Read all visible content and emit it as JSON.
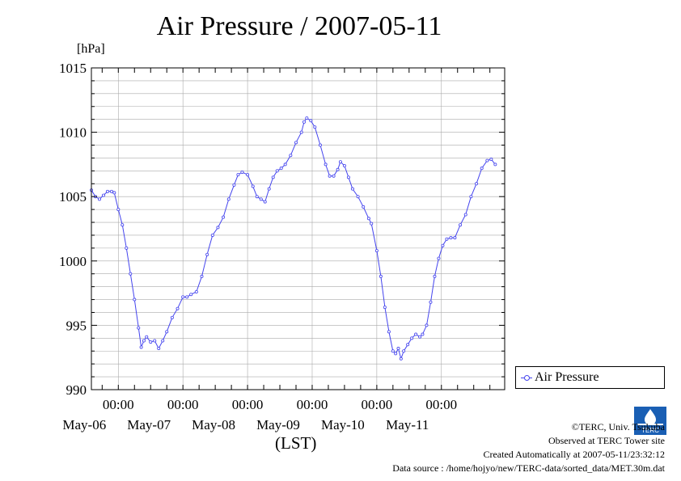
{
  "title": "Air Pressure / 2007-05-11",
  "unit": "[hPa]",
  "x_unit": "(LST)",
  "legend": {
    "label": "Air Pressure"
  },
  "credits": {
    "line1": "©TERC, Univ. Tsukuba",
    "line2": "Observed at TERC Tower site",
    "line3": "Created Automatically at 2007-05-11/23:32:12",
    "line4": "Data source : /home/hojyo/new/TERC-data/sorted_data/MET.30m.dat"
  },
  "logo_text": "TERC",
  "colors": {
    "series": "#4444ee",
    "grid": "#aaaaaa"
  },
  "chart_data": {
    "type": "line",
    "title": "Air Pressure / 2007-05-11",
    "ylabel": "[hPa]",
    "xlabel": "(LST)",
    "ylim": [
      990,
      1015
    ],
    "y_ticks": [
      990,
      995,
      1000,
      1005,
      1010,
      1015
    ],
    "xlim": [
      "2007-05-05 14:00",
      "2007-05-11 23:30"
    ],
    "x_ticks": [
      "2007-05-06 00:00",
      "2007-05-07 00:00",
      "2007-05-08 00:00",
      "2007-05-09 00:00",
      "2007-05-10 00:00",
      "2007-05-11 00:00"
    ],
    "x_tick_labels": [
      "00:00",
      "00:00",
      "00:00",
      "00:00",
      "00:00",
      "00:00"
    ],
    "date_labels": [
      "May-06",
      "May-07",
      "May-08",
      "May-09",
      "May-10",
      "May-11"
    ],
    "grid": true,
    "legend_position": "right",
    "series": [
      {
        "name": "Air Pressure",
        "marker": "circle",
        "points": [
          [
            "2007-05-05 14:00",
            1005.5
          ],
          [
            "2007-05-05 15:30",
            1005.0
          ],
          [
            "2007-05-05 17:00",
            1004.8
          ],
          [
            "2007-05-05 18:30",
            1005.1
          ],
          [
            "2007-05-05 20:00",
            1005.4
          ],
          [
            "2007-05-05 21:30",
            1005.4
          ],
          [
            "2007-05-05 22:30",
            1005.3
          ],
          [
            "2007-05-06 00:00",
            1004.0
          ],
          [
            "2007-05-06 01:30",
            1002.8
          ],
          [
            "2007-05-06 03:00",
            1001.0
          ],
          [
            "2007-05-06 04:30",
            999.0
          ],
          [
            "2007-05-06 06:00",
            997.0
          ],
          [
            "2007-05-06 07:30",
            994.8
          ],
          [
            "2007-05-06 08:30",
            993.3
          ],
          [
            "2007-05-06 09:30",
            993.8
          ],
          [
            "2007-05-06 10:30",
            994.1
          ],
          [
            "2007-05-06 12:00",
            993.7
          ],
          [
            "2007-05-06 13:30",
            993.8
          ],
          [
            "2007-05-06 15:00",
            993.2
          ],
          [
            "2007-05-06 16:30",
            993.8
          ],
          [
            "2007-05-06 18:00",
            994.5
          ],
          [
            "2007-05-06 20:00",
            995.6
          ],
          [
            "2007-05-06 22:00",
            996.3
          ],
          [
            "2007-05-07 00:00",
            997.2
          ],
          [
            "2007-05-07 01:30",
            997.2
          ],
          [
            "2007-05-07 03:00",
            997.4
          ],
          [
            "2007-05-07 05:00",
            997.6
          ],
          [
            "2007-05-07 07:00",
            998.8
          ],
          [
            "2007-05-07 09:00",
            1000.5
          ],
          [
            "2007-05-07 11:00",
            1002.0
          ],
          [
            "2007-05-07 13:00",
            1002.6
          ],
          [
            "2007-05-07 15:00",
            1003.4
          ],
          [
            "2007-05-07 17:00",
            1004.8
          ],
          [
            "2007-05-07 19:00",
            1005.9
          ],
          [
            "2007-05-07 20:30",
            1006.7
          ],
          [
            "2007-05-07 22:00",
            1006.9
          ],
          [
            "2007-05-08 00:00",
            1006.7
          ],
          [
            "2007-05-08 02:00",
            1005.8
          ],
          [
            "2007-05-08 03:30",
            1005.0
          ],
          [
            "2007-05-08 05:00",
            1004.8
          ],
          [
            "2007-05-08 06:30",
            1004.6
          ],
          [
            "2007-05-08 08:00",
            1005.6
          ],
          [
            "2007-05-08 09:30",
            1006.5
          ],
          [
            "2007-05-08 11:00",
            1007.0
          ],
          [
            "2007-05-08 12:30",
            1007.2
          ],
          [
            "2007-05-08 14:00",
            1007.5
          ],
          [
            "2007-05-08 16:00",
            1008.2
          ],
          [
            "2007-05-08 18:00",
            1009.2
          ],
          [
            "2007-05-08 20:00",
            1010.0
          ],
          [
            "2007-05-08 21:00",
            1010.8
          ],
          [
            "2007-05-08 22:00",
            1011.1
          ],
          [
            "2007-05-08 23:30",
            1010.9
          ],
          [
            "2007-05-09 01:00",
            1010.4
          ],
          [
            "2007-05-09 03:00",
            1009.0
          ],
          [
            "2007-05-09 05:00",
            1007.5
          ],
          [
            "2007-05-09 06:30",
            1006.6
          ],
          [
            "2007-05-09 08:00",
            1006.6
          ],
          [
            "2007-05-09 09:30",
            1007.1
          ],
          [
            "2007-05-09 10:30",
            1007.7
          ],
          [
            "2007-05-09 12:00",
            1007.4
          ],
          [
            "2007-05-09 13:30",
            1006.5
          ],
          [
            "2007-05-09 15:00",
            1005.6
          ],
          [
            "2007-05-09 17:00",
            1005.0
          ],
          [
            "2007-05-09 19:00",
            1004.2
          ],
          [
            "2007-05-09 21:00",
            1003.3
          ],
          [
            "2007-05-09 22:00",
            1002.9
          ],
          [
            "2007-05-10 00:00",
            1000.8
          ],
          [
            "2007-05-10 01:30",
            998.8
          ],
          [
            "2007-05-10 03:00",
            996.4
          ],
          [
            "2007-05-10 04:30",
            994.5
          ],
          [
            "2007-05-10 06:00",
            993.0
          ],
          [
            "2007-05-10 07:00",
            992.8
          ],
          [
            "2007-05-10 08:00",
            993.2
          ],
          [
            "2007-05-10 09:00",
            992.4
          ],
          [
            "2007-05-10 10:00",
            993.0
          ],
          [
            "2007-05-10 11:30",
            993.5
          ],
          [
            "2007-05-10 13:00",
            994.0
          ],
          [
            "2007-05-10 14:30",
            994.3
          ],
          [
            "2007-05-10 16:00",
            994.1
          ],
          [
            "2007-05-10 17:00",
            994.3
          ],
          [
            "2007-05-10 18:30",
            995.0
          ],
          [
            "2007-05-10 20:00",
            996.8
          ],
          [
            "2007-05-10 21:30",
            998.8
          ],
          [
            "2007-05-10 23:00",
            1000.2
          ],
          [
            "2007-05-11 00:30",
            1001.2
          ],
          [
            "2007-05-11 02:00",
            1001.7
          ],
          [
            "2007-05-11 03:30",
            1001.8
          ],
          [
            "2007-05-11 05:00",
            1001.8
          ],
          [
            "2007-05-11 07:00",
            1002.8
          ],
          [
            "2007-05-11 09:00",
            1003.6
          ],
          [
            "2007-05-11 11:00",
            1005.0
          ],
          [
            "2007-05-11 13:00",
            1006.0
          ],
          [
            "2007-05-11 15:00",
            1007.2
          ],
          [
            "2007-05-11 17:00",
            1007.8
          ],
          [
            "2007-05-11 18:30",
            1007.9
          ],
          [
            "2007-05-11 20:00",
            1007.5
          ]
        ]
      }
    ]
  }
}
